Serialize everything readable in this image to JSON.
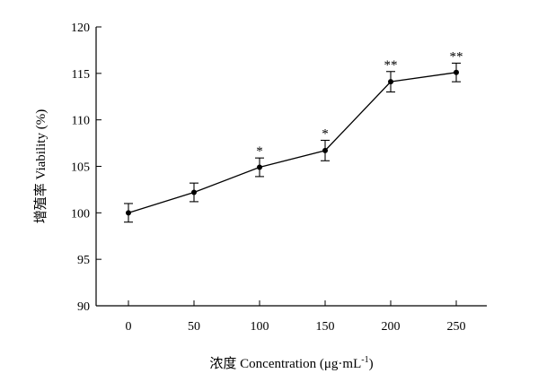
{
  "chart_data": {
    "type": "line",
    "xlabel_main": "浓度 Concentration (μg·mL",
    "xlabel_sup": "-1",
    "xlabel_tail": ")",
    "ylabel": "增殖率 Viability (%)",
    "ylim": [
      90,
      120
    ],
    "yticks": [
      90,
      95,
      100,
      105,
      110,
      115,
      120
    ],
    "categories": [
      "0",
      "50",
      "100",
      "150",
      "200",
      "250"
    ],
    "values": [
      100.0,
      102.2,
      104.9,
      106.7,
      114.1,
      115.1
    ],
    "error": [
      1.0,
      1.0,
      1.0,
      1.1,
      1.1,
      1.0
    ],
    "significance": [
      "",
      "",
      "*",
      "*",
      "**",
      "**"
    ],
    "grid": false
  }
}
